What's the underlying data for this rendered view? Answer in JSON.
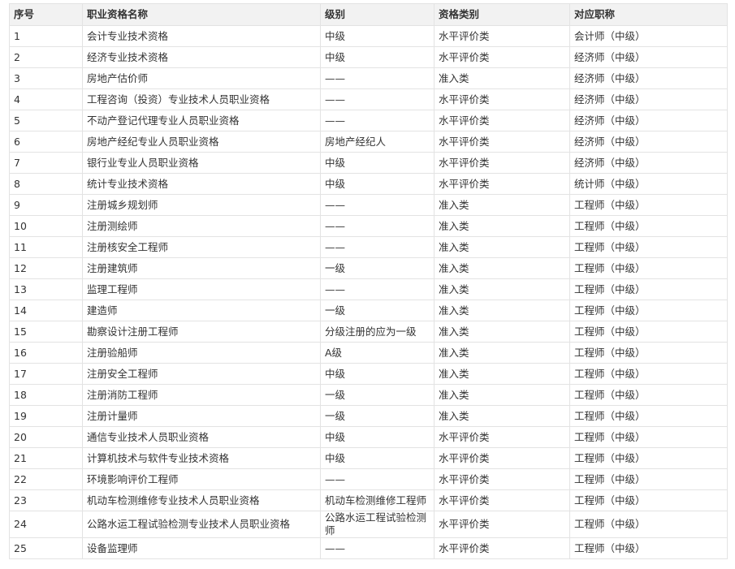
{
  "table": {
    "header": [
      "序号",
      "职业资格名称",
      "级别",
      "资格类别",
      "对应职称"
    ],
    "rows": [
      [
        "1",
        "会计专业技术资格",
        "中级",
        "水平评价类",
        "会计师（中级）"
      ],
      [
        "2",
        "经济专业技术资格",
        "中级",
        "水平评价类",
        "经济师（中级）"
      ],
      [
        "3",
        "房地产估价师",
        "——",
        "准入类",
        "经济师（中级）"
      ],
      [
        "4",
        "工程咨询（投资）专业技术人员职业资格",
        "——",
        "水平评价类",
        "经济师（中级）"
      ],
      [
        "5",
        "不动产登记代理专业人员职业资格",
        "——",
        "水平评价类",
        "经济师（中级）"
      ],
      [
        "6",
        "房地产经纪专业人员职业资格",
        "房地产经纪人",
        "水平评价类",
        "经济师（中级）"
      ],
      [
        "7",
        "银行业专业人员职业资格",
        "中级",
        "水平评价类",
        "经济师（中级）"
      ],
      [
        "8",
        "统计专业技术资格",
        "中级",
        "水平评价类",
        "统计师（中级）"
      ],
      [
        "9",
        "注册城乡规划师",
        "——",
        "准入类",
        "工程师（中级）"
      ],
      [
        "10",
        "注册测绘师",
        "——",
        "准入类",
        "工程师（中级）"
      ],
      [
        "11",
        "注册核安全工程师",
        "——",
        "准入类",
        "工程师（中级）"
      ],
      [
        "12",
        "注册建筑师",
        "一级",
        "准入类",
        "工程师（中级）"
      ],
      [
        "13",
        "监理工程师",
        "——",
        "准入类",
        "工程师（中级）"
      ],
      [
        "14",
        "建造师",
        "一级",
        "准入类",
        "工程师（中级）"
      ],
      [
        "15",
        "勘察设计注册工程师",
        "分级注册的应为一级",
        "准入类",
        "工程师（中级）"
      ],
      [
        "16",
        "注册验船师",
        "A级",
        "准入类",
        "工程师（中级）"
      ],
      [
        "17",
        "注册安全工程师",
        "中级",
        "准入类",
        "工程师（中级）"
      ],
      [
        "18",
        "注册消防工程师",
        "一级",
        "准入类",
        "工程师（中级）"
      ],
      [
        "19",
        "注册计量师",
        "一级",
        "准入类",
        "工程师（中级）"
      ],
      [
        "20",
        "通信专业技术人员职业资格",
        "中级",
        "水平评价类",
        "工程师（中级）"
      ],
      [
        "21",
        "计算机技术与软件专业技术资格",
        "中级",
        "水平评价类",
        "工程师（中级）"
      ],
      [
        "22",
        "环境影响评价工程师",
        "——",
        "水平评价类",
        "工程师（中级）"
      ],
      [
        "23",
        "机动车检测维修专业技术人员职业资格",
        "机动车检测维修工程师",
        "水平评价类",
        "工程师（中级）"
      ],
      [
        "24",
        "公路水运工程试验检测专业技术人员职业资格",
        "公路水运工程试验检测师",
        "水平评价类",
        "工程师（中级）"
      ],
      [
        "25",
        "设备监理师",
        "——",
        "水平评价类",
        "工程师（中级）"
      ]
    ]
  }
}
